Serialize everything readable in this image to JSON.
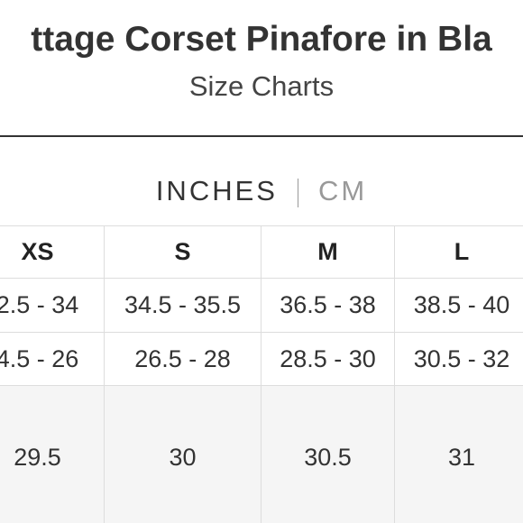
{
  "header": {
    "title": "ttage Corset Pinafore in Bla",
    "subtitle": "Size Charts"
  },
  "units": {
    "selected": "INCHES",
    "other": "CM"
  },
  "table": {
    "header": [
      "XS",
      "S",
      "M",
      "L"
    ],
    "rows": [
      [
        "2.5 - 34",
        "34.5 - 35.5",
        "36.5 - 38",
        "38.5 - 40"
      ],
      [
        "4.5 - 26",
        "26.5 - 28",
        "28.5 - 30",
        "30.5 - 32"
      ],
      [
        "29.5",
        "30",
        "30.5",
        "31"
      ]
    ]
  }
}
